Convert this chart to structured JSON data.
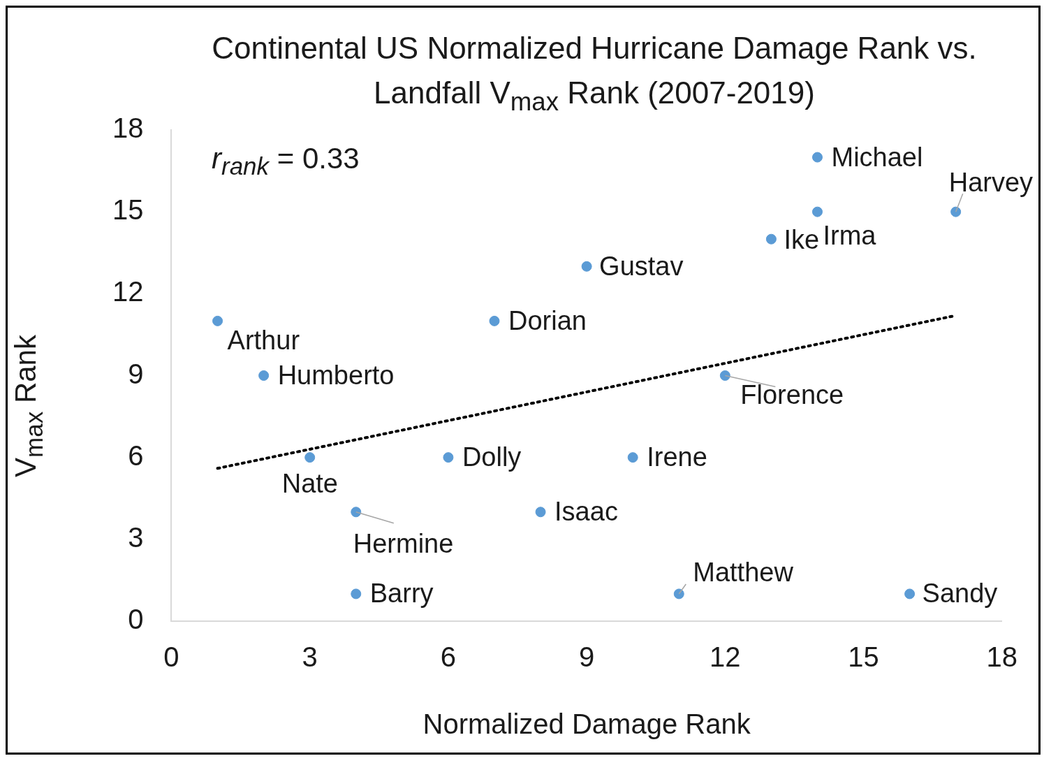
{
  "chart_data": {
    "type": "scatter",
    "title": "Continental US Normalized Hurricane Damage Rank vs. Landfall V$_{max}$ Rank (2007-2019)",
    "xlabel": "Normalized Damage Rank",
    "ylabel": "V$_{max}$ Rank",
    "xlim": [
      0,
      18
    ],
    "xticks": [
      0,
      3,
      6,
      9,
      12,
      15,
      18
    ],
    "ylim": [
      0,
      18
    ],
    "yticks": [
      0,
      3,
      6,
      9,
      12,
      15,
      18
    ],
    "grid": false,
    "legend": false,
    "marker": "circle",
    "series": [
      {
        "type": "scatter",
        "color": "#5b9bd5",
        "x": [
          1,
          2,
          3,
          4,
          4,
          6,
          7,
          8,
          9,
          10,
          11,
          12,
          13,
          14,
          14,
          16,
          17
        ],
        "values": [
          11,
          9,
          6,
          1,
          4,
          6,
          11,
          4,
          13,
          6,
          1,
          9,
          14,
          15,
          17,
          1,
          15
        ]
      },
      {
        "type": "line",
        "color": "#000000",
        "line_style": "dotted",
        "marker": "none",
        "x": [
          1,
          17
        ],
        "values": [
          5.6,
          11.2
        ]
      }
    ],
    "annotations": [
      "r$_{rank}$ = 0.33",
      {
        "text": "Arthur",
        "x": 1,
        "y": 11
      },
      {
        "text": "Humberto",
        "x": 2,
        "y": 9
      },
      {
        "text": "Nate",
        "x": 3,
        "y": 6
      },
      {
        "text": "Barry",
        "x": 4,
        "y": 1
      },
      {
        "text": "Hermine",
        "x": 4,
        "y": 4
      },
      {
        "text": "Dolly",
        "x": 6,
        "y": 6
      },
      {
        "text": "Dorian",
        "x": 7,
        "y": 11
      },
      {
        "text": "Isaac",
        "x": 8,
        "y": 4
      },
      {
        "text": "Gustav",
        "x": 9,
        "y": 13
      },
      {
        "text": "Irene",
        "x": 10,
        "y": 6
      },
      {
        "text": "Matthew",
        "x": 11,
        "y": 1
      },
      {
        "text": "Florence",
        "x": 12,
        "y": 9
      },
      {
        "text": "Ike",
        "x": 13,
        "y": 14
      },
      {
        "text": "Irma",
        "x": 14,
        "y": 15
      },
      {
        "text": "Michael",
        "x": 14,
        "y": 17
      },
      {
        "text": "Sandy",
        "x": 16,
        "y": 1
      },
      {
        "text": "Harvey",
        "x": 17,
        "y": 15
      }
    ]
  }
}
